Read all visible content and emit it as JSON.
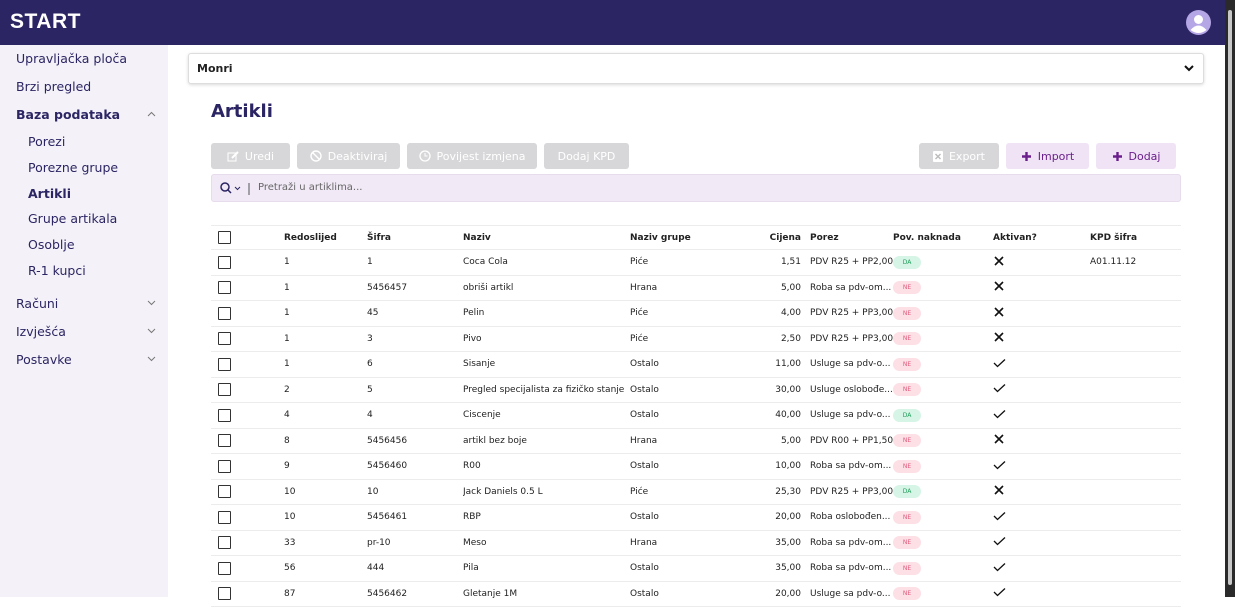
{
  "header": {
    "logo": "START"
  },
  "sidebar": {
    "items": [
      {
        "label": "Upravljačka ploča"
      },
      {
        "label": "Brzi pregled"
      },
      {
        "label": "Baza podataka",
        "expanded": true,
        "active_child": 2,
        "children": [
          "Porezi",
          "Porezne grupe",
          "Artikli",
          "Grupe artikala",
          "Osoblje",
          "R-1 kupci"
        ]
      },
      {
        "label": "Računi",
        "expanded": false
      },
      {
        "label": "Izvješća",
        "expanded": false
      },
      {
        "label": "Postavke",
        "expanded": false
      }
    ]
  },
  "company_select": {
    "value": "Monri"
  },
  "page": {
    "title": "Artikli"
  },
  "toolbar": {
    "left": [
      {
        "label": "Uredi",
        "enabled": false
      },
      {
        "label": "Deaktiviraj",
        "enabled": false
      },
      {
        "label": "Povijest izmjena",
        "enabled": false
      },
      {
        "label": "Dodaj KPD",
        "enabled": false
      }
    ],
    "right": [
      {
        "label": "Export",
        "enabled": false
      },
      {
        "label": "Import",
        "enabled": true
      },
      {
        "label": "Dodaj",
        "enabled": true
      }
    ]
  },
  "search": {
    "placeholder": "Pretraži u artiklima..."
  },
  "table": {
    "columns": [
      "Redoslijed",
      "Šifra",
      "Naziv",
      "Naziv grupe",
      "Cijena",
      "Porez",
      "Pov. naknada",
      "Aktivan?",
      "KPD šifra"
    ],
    "rows": [
      {
        "cells": [
          "1",
          "1",
          "Coca Cola",
          "Piće",
          "1,51",
          "PDV R25 + PP2,00",
          "DA"
        ],
        "active": false,
        "kpd": "A01.11.12"
      },
      {
        "cells": [
          "1",
          "5456457",
          "obriši artikl",
          "Hrana",
          "5,00",
          "Roba sa pdv-om...",
          "NE"
        ],
        "active": false
      },
      {
        "cells": [
          "1",
          "45",
          "Pelin",
          "Piće",
          "4,00",
          "PDV R25 + PP3,00",
          "NE"
        ],
        "active": false
      },
      {
        "cells": [
          "1",
          "3",
          "Pivo",
          "Piće",
          "2,50",
          "PDV R25 + PP3,00",
          "NE"
        ],
        "active": false
      },
      {
        "cells": [
          "1",
          "6",
          "Sisanje",
          "Ostalo",
          "11,00",
          "Usluge sa pdv-o...",
          "NE"
        ],
        "active": true
      },
      {
        "cells": [
          "2",
          "5",
          "Pregled specijalista za fizičko stanje",
          "Ostalo",
          "30,00",
          "Usluge oslobođe...",
          "NE"
        ],
        "active": true
      },
      {
        "cells": [
          "4",
          "4",
          "Ciscenje",
          "Ostalo",
          "40,00",
          "Usluge sa pdv-o...",
          "DA"
        ],
        "active": true
      },
      {
        "cells": [
          "8",
          "5456456",
          "artikl bez boje",
          "Hrana",
          "5,00",
          "PDV R00 + PP1,50",
          "NE"
        ],
        "active": false
      },
      {
        "cells": [
          "9",
          "5456460",
          "R00",
          "Ostalo",
          "10,00",
          "Roba sa pdv-om...",
          "NE"
        ],
        "active": true
      },
      {
        "cells": [
          "10",
          "10",
          "Jack Daniels 0.5 L",
          "Piće",
          "25,30",
          "PDV R25 + PP3,00",
          "DA"
        ],
        "active": false
      },
      {
        "cells": [
          "10",
          "5456461",
          "RBP",
          "Ostalo",
          "20,00",
          "Roba oslobođen...",
          "NE"
        ],
        "active": true
      },
      {
        "cells": [
          "33",
          "pr-10",
          "Meso",
          "Hrana",
          "35,00",
          "Roba sa pdv-om...",
          "NE"
        ],
        "active": true
      },
      {
        "cells": [
          "56",
          "444",
          "Pila",
          "Ostalo",
          "35,00",
          "Roba sa pdv-om...",
          "NE"
        ],
        "active": true
      },
      {
        "cells": [
          "87",
          "5456462",
          "Gletanje 1M",
          "Ostalo",
          "20,00",
          "Usluge sa pdv-o...",
          "NE"
        ],
        "active": true
      }
    ]
  }
}
